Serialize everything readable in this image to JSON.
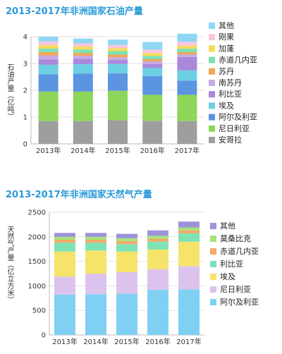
{
  "chart_data": [
    {
      "type": "bar",
      "stacked": true,
      "title": "2013-2017年非洲国家石油产量",
      "ylabel": "石油产量（亿吨）",
      "xlabel": "",
      "categories": [
        "2013年",
        "2014年",
        "2015年",
        "2016年",
        "2017年"
      ],
      "ylim": [
        0,
        4
      ],
      "yticks": [
        0,
        1,
        2,
        3,
        4
      ],
      "grid": true,
      "legend_position": "right",
      "series": [
        {
          "name": "安哥拉",
          "color": "#9e9e9e",
          "values": [
            0.85,
            0.85,
            0.88,
            0.86,
            0.85
          ]
        },
        {
          "name": "尼日利亚",
          "color": "#8ed65a",
          "values": [
            1.1,
            1.1,
            1.1,
            0.97,
            0.98
          ]
        },
        {
          "name": "阿尔及利亚",
          "color": "#5b94e0",
          "values": [
            0.65,
            0.67,
            0.65,
            0.7,
            0.53
          ]
        },
        {
          "name": "埃及",
          "color": "#6dcfe3",
          "values": [
            0.35,
            0.35,
            0.35,
            0.3,
            0.38
          ]
        },
        {
          "name": "利比亚",
          "color": "#a889dc",
          "values": [
            0.2,
            0.2,
            0.15,
            0.15,
            0.5
          ]
        },
        {
          "name": "南苏丹",
          "color": "#c8a9e2",
          "values": [
            0.15,
            0.12,
            0.1,
            0.1,
            0.1
          ]
        },
        {
          "name": "苏丹",
          "color": "#f0a654",
          "values": [
            0.12,
            0.1,
            0.1,
            0.08,
            0.08
          ]
        },
        {
          "name": "赤道几内亚",
          "color": "#7de0b6",
          "values": [
            0.14,
            0.13,
            0.13,
            0.12,
            0.13
          ]
        },
        {
          "name": "加蓬",
          "color": "#f4dc5a",
          "values": [
            0.12,
            0.11,
            0.11,
            0.11,
            0.11
          ]
        },
        {
          "name": "刚果",
          "color": "#f9c6de",
          "values": [
            0.14,
            0.12,
            0.12,
            0.13,
            0.15
          ]
        },
        {
          "name": "其他",
          "color": "#8ed7f4",
          "values": [
            0.18,
            0.18,
            0.2,
            0.28,
            0.3
          ]
        }
      ]
    },
    {
      "type": "bar",
      "stacked": true,
      "title": "2013-2017年非洲国家天然气产量",
      "ylabel": "天然气产量（亿立方米）",
      "xlabel": "",
      "categories": [
        "2013年",
        "2014年",
        "2015年",
        "2016年",
        "2017年"
      ],
      "ylim": [
        0,
        2500
      ],
      "yticks": [
        0,
        500,
        1000,
        1500,
        2000,
        2500
      ],
      "grid": true,
      "legend_position": "right",
      "series": [
        {
          "name": "阿尔及利亚",
          "color": "#7fd0f3",
          "values": [
            820,
            830,
            840,
            920,
            930
          ]
        },
        {
          "name": "尼日利亚",
          "color": "#dcc3ee",
          "values": [
            370,
            420,
            440,
            420,
            470
          ]
        },
        {
          "name": "埃及",
          "color": "#f6e36a",
          "values": [
            510,
            470,
            420,
            400,
            500
          ]
        },
        {
          "name": "利比亚",
          "color": "#7ee3b4",
          "values": [
            180,
            160,
            150,
            160,
            170
          ]
        },
        {
          "name": "赤道几内亚",
          "color": "#f3a96b",
          "values": [
            60,
            60,
            60,
            60,
            60
          ]
        },
        {
          "name": "莫桑比克",
          "color": "#a7e27b",
          "values": [
            60,
            60,
            60,
            60,
            60
          ]
        },
        {
          "name": "其他",
          "color": "#9c93db",
          "values": [
            80,
            80,
            90,
            110,
            120
          ]
        }
      ]
    }
  ]
}
